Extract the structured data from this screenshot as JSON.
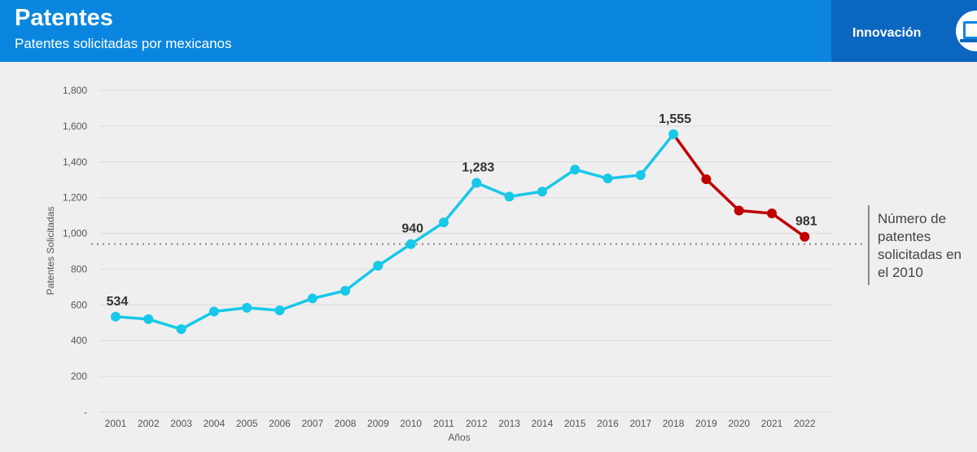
{
  "header": {
    "title": "Patentes",
    "subtitle": "Patentes solicitadas por mexicanos",
    "section": "Innovación",
    "section_icon": "laptop-icon"
  },
  "annotation": {
    "text": "Número de patentes solicitadas en el 2010"
  },
  "colors": {
    "header": "#0a86e0",
    "section_tab": "#0b66c0",
    "rising": "#17c8e8",
    "falling": "#c00000",
    "reference_line": "#9a9a9a"
  },
  "chart_data": {
    "type": "line",
    "title": "",
    "xlabel": "Años",
    "ylabel": "Patentes Solicitadas",
    "ylim": [
      0,
      1800
    ],
    "y_ticks": [
      {
        "value": 0,
        "label": "-"
      },
      {
        "value": 200,
        "label": "200"
      },
      {
        "value": 400,
        "label": "400"
      },
      {
        "value": 600,
        "label": "600"
      },
      {
        "value": 800,
        "label": "800"
      },
      {
        "value": 1000,
        "label": "1,000"
      },
      {
        "value": 1200,
        "label": "1,200"
      },
      {
        "value": 1400,
        "label": "1,400"
      },
      {
        "value": 1600,
        "label": "1,600"
      },
      {
        "value": 1800,
        "label": "1,800"
      }
    ],
    "grid": true,
    "categories": [
      "2001",
      "2002",
      "2003",
      "2004",
      "2005",
      "2006",
      "2007",
      "2008",
      "2009",
      "2010",
      "2011",
      "2012",
      "2013",
      "2014",
      "2015",
      "2016",
      "2017",
      "2018",
      "2019",
      "2020",
      "2021",
      "2022"
    ],
    "values": [
      534,
      520,
      464,
      563,
      584,
      569,
      636,
      679,
      819,
      940,
      1061,
      1283,
      1206,
      1234,
      1357,
      1307,
      1326,
      1555,
      1303,
      1128,
      1112,
      981
    ],
    "series_segments": [
      {
        "from": "2001",
        "to": "2018",
        "color": "#17c8e8"
      },
      {
        "from": "2018",
        "to": "2022",
        "color": "#c00000"
      }
    ],
    "data_labels": [
      {
        "category": "2001",
        "text": "534"
      },
      {
        "category": "2010",
        "text": "940"
      },
      {
        "category": "2012",
        "text": "1,283"
      },
      {
        "category": "2018",
        "text": "1,555"
      },
      {
        "category": "2022",
        "text": "981"
      }
    ],
    "reference_line": {
      "value": 940,
      "style": "dotted"
    }
  }
}
